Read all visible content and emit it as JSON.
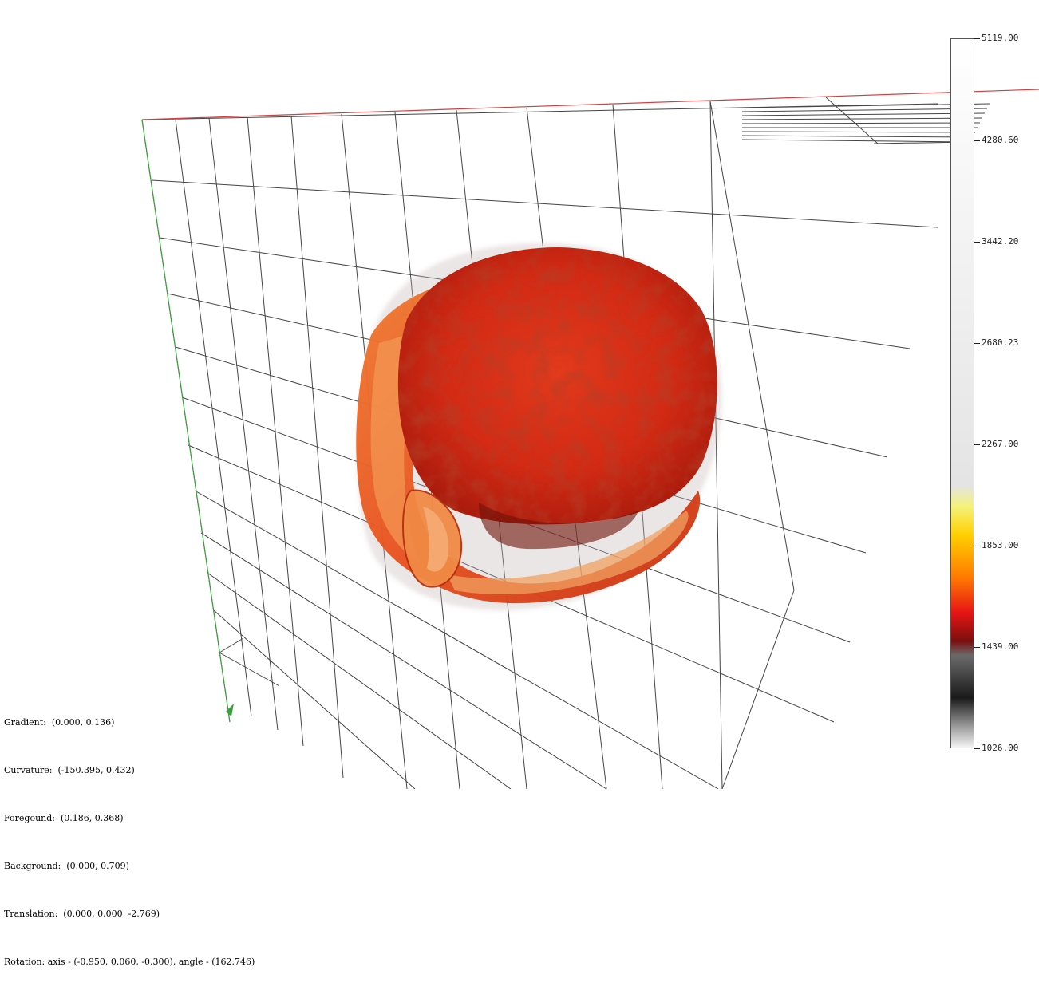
{
  "viewer": {
    "colorbar": {
      "labels": [
        "5119.00",
        "4280.60",
        "3442.20",
        "2680.23",
        "2267.00",
        "1853.00",
        "1439.00",
        "1026.00"
      ]
    },
    "status": {
      "gradient": "Gradient:  (0.000, 0.136)",
      "curvature": "Curvature:  (-150.395, 0.432)",
      "foreground": "Foregound:  (0.186, 0.368)",
      "background": "Background:  (0.000, 0.709)",
      "translation": "Translation:  (0.000, 0.000, -2.769)",
      "rotation": "Rotation: axis - (-0.950, 0.060, -0.300), angle - (162.746)"
    },
    "colors": {
      "x_axis": "#d04040",
      "y_axis": "#3aa03a",
      "grid": "#444444",
      "volume_main": "#d9341a",
      "volume_dark": "#8e1508",
      "volume_light": "#f28a3a"
    }
  }
}
